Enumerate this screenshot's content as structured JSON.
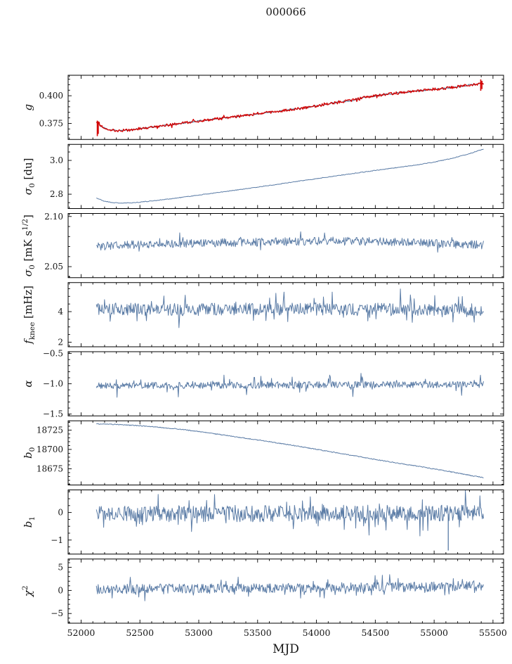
{
  "chart_data": {
    "type": "line",
    "title": "000066",
    "xlabel": "MJD",
    "xlim": [
      51890,
      55590
    ],
    "xticks": [
      52000,
      52500,
      53000,
      53500,
      54000,
      54500,
      55000,
      55500
    ],
    "x_minor_step": 100,
    "x_data_range": [
      52130,
      55420
    ],
    "colors": {
      "line": "#5b7ca6",
      "overlay": "#d40000",
      "axis": "#000000"
    },
    "legend": "none",
    "grid": false,
    "panels": [
      {
        "ylabel_parts": [
          {
            "t": "g",
            "it": 1
          }
        ],
        "ylabel_text": "g",
        "ylim": [
          0.3605,
          0.4185
        ],
        "yticks": [
          0.375,
          0.4
        ],
        "ytick_labels": [
          "0.375",
          "0.400"
        ],
        "yminor_step": 0.005,
        "series": [
          {
            "name": "g-gain-fit",
            "color": "#4a6788",
            "width": 1.0,
            "seed": 11,
            "n": 560,
            "noise": 0.0006,
            "spike_prob": 0,
            "spike_amp": 0,
            "keypoints": [
              [
                52130,
                0.3762
              ],
              [
                52170,
                0.3722
              ],
              [
                52230,
                0.3695
              ],
              [
                52310,
                0.3685
              ],
              [
                52400,
                0.3688
              ],
              [
                52500,
                0.3703
              ],
              [
                52650,
                0.3722
              ],
              [
                52800,
                0.3743
              ],
              [
                53000,
                0.3772
              ],
              [
                53200,
                0.3798
              ],
              [
                53400,
                0.3822
              ],
              [
                53600,
                0.385
              ],
              [
                53800,
                0.3878
              ],
              [
                53950,
                0.3898
              ],
              [
                54100,
                0.3928
              ],
              [
                54200,
                0.3945
              ],
              [
                54300,
                0.3958
              ],
              [
                54400,
                0.3985
              ],
              [
                54500,
                0.3998
              ],
              [
                54600,
                0.4015
              ],
              [
                54750,
                0.4032
              ],
              [
                54900,
                0.4048
              ],
              [
                55050,
                0.4063
              ],
              [
                55200,
                0.4082
              ],
              [
                55300,
                0.4098
              ],
              [
                55380,
                0.4108
              ],
              [
                55420,
                0.4112
              ]
            ]
          },
          {
            "name": "g-gain-data",
            "color": "#d40000",
            "width": 1.3,
            "seed": 12,
            "n": 560,
            "noise": 0.0012,
            "spike_prob": 0.05,
            "spike_amp": 0.002,
            "keypoints": [
              [
                52130,
                0.3762
              ],
              [
                52170,
                0.3722
              ],
              [
                52230,
                0.3695
              ],
              [
                52310,
                0.3685
              ],
              [
                52400,
                0.3688
              ],
              [
                52500,
                0.3703
              ],
              [
                52650,
                0.3722
              ],
              [
                52800,
                0.3743
              ],
              [
                53000,
                0.3772
              ],
              [
                53200,
                0.3798
              ],
              [
                53400,
                0.3822
              ],
              [
                53600,
                0.385
              ],
              [
                53800,
                0.3878
              ],
              [
                53950,
                0.3898
              ],
              [
                54100,
                0.3928
              ],
              [
                54200,
                0.3945
              ],
              [
                54300,
                0.3958
              ],
              [
                54400,
                0.3985
              ],
              [
                54500,
                0.3998
              ],
              [
                54600,
                0.4015
              ],
              [
                54750,
                0.4032
              ],
              [
                54900,
                0.4048
              ],
              [
                55050,
                0.4063
              ],
              [
                55200,
                0.4082
              ],
              [
                55300,
                0.4098
              ],
              [
                55380,
                0.4108
              ],
              [
                55420,
                0.4108
              ]
            ],
            "extras": [
              [
                52138,
                0.3635,
                0.3775
              ],
              [
                52146,
                0.3655,
                0.3768
              ],
              [
                55396,
                0.4045,
                0.4148
              ],
              [
                55406,
                0.406,
                0.4135
              ]
            ]
          }
        ]
      },
      {
        "ylabel_parts": [
          {
            "t": "σ",
            "it": 1
          },
          {
            "t": "0",
            "sub": 1
          },
          {
            "t": " [du]"
          }
        ],
        "ylabel_text": "sigma0 [du]",
        "ylim": [
          2.715,
          3.095
        ],
        "yticks": [
          2.8,
          3.0
        ],
        "ytick_labels": [
          "2.8",
          "3.0"
        ],
        "yminor_step": 0.05,
        "series": [
          {
            "name": "sigma0-du",
            "color": "#5b7ca6",
            "width": 1.0,
            "seed": 21,
            "n": 520,
            "noise": 0.002,
            "spike_prob": 0,
            "spike_amp": 0,
            "keypoints": [
              [
                52130,
                2.778
              ],
              [
                52190,
                2.76
              ],
              [
                52270,
                2.75
              ],
              [
                52350,
                2.747
              ],
              [
                52450,
                2.75
              ],
              [
                52600,
                2.76
              ],
              [
                52800,
                2.776
              ],
              [
                53000,
                2.795
              ],
              [
                53200,
                2.813
              ],
              [
                53400,
                2.832
              ],
              [
                53600,
                2.852
              ],
              [
                53800,
                2.872
              ],
              [
                54000,
                2.892
              ],
              [
                54200,
                2.912
              ],
              [
                54400,
                2.931
              ],
              [
                54600,
                2.95
              ],
              [
                54800,
                2.968
              ],
              [
                55000,
                2.99
              ],
              [
                55150,
                3.012
              ],
              [
                55300,
                3.04
              ],
              [
                55420,
                3.068
              ]
            ]
          }
        ]
      },
      {
        "ylabel_parts": [
          {
            "t": "σ",
            "it": 1
          },
          {
            "t": "0",
            "sub": 1
          },
          {
            "t": " [mK s"
          },
          {
            "t": "1/2",
            "sup": 1
          },
          {
            "t": "]"
          }
        ],
        "ylabel_text": "sigma0 [mK s^1/2]",
        "ylim": [
          2.039,
          2.103
        ],
        "yticks": [
          2.05,
          2.1
        ],
        "ytick_labels": [
          "2.05",
          "2.10"
        ],
        "yminor_step": 0.01,
        "series": [
          {
            "name": "sigma0-mK",
            "color": "#5b7ca6",
            "width": 1.0,
            "seed": 31,
            "n": 600,
            "noise": 0.0042,
            "spike_prob": 0.06,
            "spike_amp": 0.007,
            "keypoints": [
              [
                52130,
                2.07
              ],
              [
                52400,
                2.072
              ],
              [
                53000,
                2.0735
              ],
              [
                53600,
                2.0745
              ],
              [
                54200,
                2.0755
              ],
              [
                54800,
                2.074
              ],
              [
                55420,
                2.0715
              ]
            ]
          }
        ]
      },
      {
        "ylabel_parts": [
          {
            "t": "f",
            "it": 1
          },
          {
            "t": "knee",
            "sub": 1
          },
          {
            "t": " [mHz]"
          }
        ],
        "ylabel_text": "f_knee [mHz]",
        "ylim": [
          1.7,
          5.9
        ],
        "yticks": [
          2,
          4
        ],
        "ytick_labels": [
          "2",
          "4"
        ],
        "yminor_step": 0.5,
        "series": [
          {
            "name": "fknee",
            "color": "#5b7ca6",
            "width": 1.0,
            "seed": 41,
            "n": 620,
            "noise": 0.42,
            "spike_prob": 0.1,
            "spike_amp": 1.1,
            "keypoints": [
              [
                52130,
                4.18
              ],
              [
                53000,
                4.14
              ],
              [
                54000,
                4.16
              ],
              [
                55420,
                4.12
              ]
            ]
          }
        ]
      },
      {
        "ylabel_parts": [
          {
            "t": "α",
            "it": 1
          }
        ],
        "ylabel_text": "alpha",
        "ylim": [
          -1.53,
          -0.47
        ],
        "yticks": [
          -1.5,
          -1.0,
          -0.5
        ],
        "ytick_labels": [
          "−1.5",
          "−1.0",
          "−0.5"
        ],
        "yminor_step": 0.1,
        "series": [
          {
            "name": "alpha",
            "color": "#5b7ca6",
            "width": 1.0,
            "seed": 51,
            "n": 620,
            "noise": 0.055,
            "spike_prob": 0.07,
            "spike_amp": 0.16,
            "keypoints": [
              [
                52130,
                -1.03
              ],
              [
                55420,
                -1.01
              ]
            ]
          }
        ]
      },
      {
        "ylabel_parts": [
          {
            "t": "b",
            "it": 1
          },
          {
            "t": "0",
            "sub": 1
          }
        ],
        "ylabel_text": "b0",
        "ylim": [
          18654,
          18737
        ],
        "yticks": [
          18675,
          18700,
          18725
        ],
        "ytick_labels": [
          "18675",
          "18700",
          "18725"
        ],
        "yminor_step": 5,
        "series": [
          {
            "name": "b0",
            "color": "#5b7ca6",
            "width": 1.0,
            "seed": 61,
            "n": 560,
            "noise": 0.55,
            "spike_prob": 0,
            "spike_amp": 0,
            "keypoints": [
              [
                52130,
                18733
              ],
              [
                52350,
                18732
              ],
              [
                52600,
                18729.5
              ],
              [
                52850,
                18726
              ],
              [
                53100,
                18721
              ],
              [
                53350,
                18715.5
              ],
              [
                53600,
                18710
              ],
              [
                53850,
                18704
              ],
              [
                54100,
                18697.5
              ],
              [
                54350,
                18691
              ],
              [
                54600,
                18684.5
              ],
              [
                54850,
                18678.5
              ],
              [
                55050,
                18673.5
              ],
              [
                55200,
                18669.5
              ],
              [
                55320,
                18666
              ],
              [
                55420,
                18663.5
              ]
            ]
          }
        ]
      },
      {
        "ylabel_parts": [
          {
            "t": "b",
            "it": 1
          },
          {
            "t": "1",
            "sub": 1
          }
        ],
        "ylabel_text": "b1",
        "ylim": [
          -1.51,
          0.82
        ],
        "yticks": [
          -1,
          0
        ],
        "ytick_labels": [
          "−1",
          "0"
        ],
        "yminor_step": 0.25,
        "series": [
          {
            "name": "b1",
            "color": "#5b7ca6",
            "width": 1.0,
            "seed": 71,
            "n": 640,
            "noise": 0.3,
            "spike_prob": 0.1,
            "spike_amp": 0.55,
            "keypoints": [
              [
                52130,
                -0.05
              ],
              [
                55420,
                -0.02
              ]
            ],
            "extras": [
              [
                55120,
                -1.38,
                -0.05
              ]
            ]
          }
        ]
      },
      {
        "ylabel_parts": [
          {
            "t": "χ",
            "it": 1
          },
          {
            "t": "2",
            "sup": 1
          }
        ],
        "ylabel_text": "chi^2",
        "ylim": [
          -7.1,
          6.8
        ],
        "yticks": [
          -5,
          0,
          5
        ],
        "ytick_labels": [
          "−5",
          "0",
          "5"
        ],
        "yminor_step": 1,
        "series": [
          {
            "name": "chi2",
            "color": "#5b7ca6",
            "width": 1.0,
            "seed": 81,
            "n": 640,
            "noise": 1.05,
            "spike_prob": 0.1,
            "spike_amp": 2.0,
            "keypoints": [
              [
                52130,
                0.3
              ],
              [
                53500,
                0.45
              ],
              [
                55000,
                0.8
              ],
              [
                55420,
                0.9
              ]
            ]
          }
        ]
      }
    ]
  }
}
